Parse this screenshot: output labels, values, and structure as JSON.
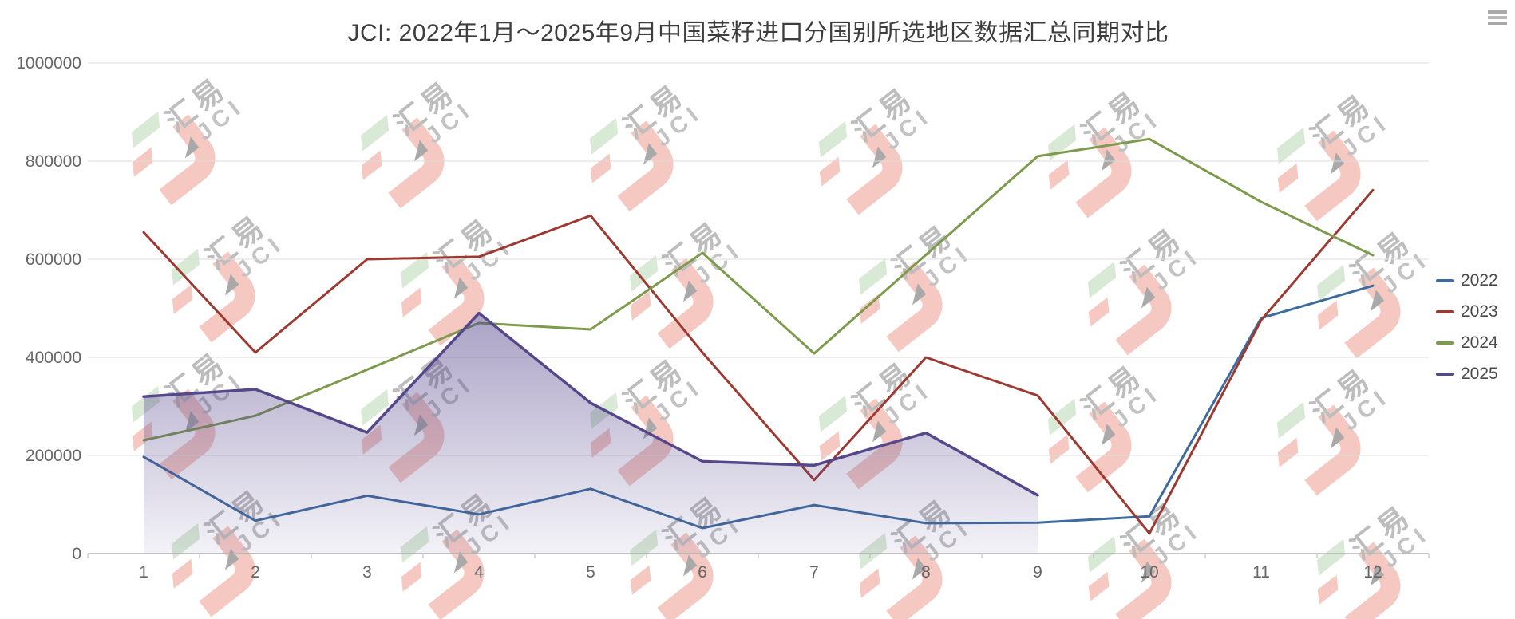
{
  "chart_data": {
    "type": "line",
    "title": "JCI: 2022年1月～2025年9月中国菜籽进口分国别所选地区数据汇总同期对比",
    "categories": [
      "1",
      "2",
      "3",
      "4",
      "5",
      "6",
      "7",
      "8",
      "9",
      "10",
      "11",
      "12"
    ],
    "xlabel": "",
    "ylabel": "",
    "ylim": [
      0,
      1000000
    ],
    "ytick_interval": 200000,
    "y_tick_labels": [
      "0",
      "200000",
      "400000",
      "600000",
      "800000",
      "1000000"
    ],
    "grid": true,
    "legend_position": "right",
    "series": [
      {
        "name": "2022",
        "type": "line",
        "color": "#3D6B9E",
        "values": [
          197000,
          67000,
          118000,
          80000,
          132000,
          52000,
          99000,
          62000,
          63000,
          76000,
          480000,
          546000
        ]
      },
      {
        "name": "2023",
        "type": "line",
        "color": "#9C3A32",
        "values": [
          655000,
          410000,
          600000,
          605000,
          689000,
          410000,
          150000,
          400000,
          322000,
          41000,
          476000,
          741000
        ]
      },
      {
        "name": "2024",
        "type": "line",
        "color": "#7D9A4D",
        "values": [
          231000,
          281000,
          375000,
          470000,
          457000,
          613000,
          408000,
          609000,
          810000,
          845000,
          717000,
          608000
        ]
      },
      {
        "name": "2025",
        "type": "area",
        "color": "#55478A",
        "fill_top": "rgba(85,70,140,0.5)",
        "fill_bottom": "rgba(85,70,140,0.07)",
        "values": [
          320000,
          335000,
          247000,
          490000,
          307000,
          188000,
          180000,
          246000,
          119000
        ]
      }
    ]
  },
  "context_menu": {
    "icon": "hamburger-menu"
  },
  "watermark": {
    "line1": "汇易",
    "line2": "JCI",
    "cols": 6,
    "rows": 4,
    "origin_x": 250,
    "origin_y": 150,
    "dx": 287,
    "dy": 172,
    "row_shift_x": 50,
    "col_drift_y": 4
  },
  "style": {
    "grid_color": "#dcdcdc",
    "axis_color": "#b6b6b6",
    "tick_text_color": "#666666",
    "title_color": "#3d3d3d"
  }
}
